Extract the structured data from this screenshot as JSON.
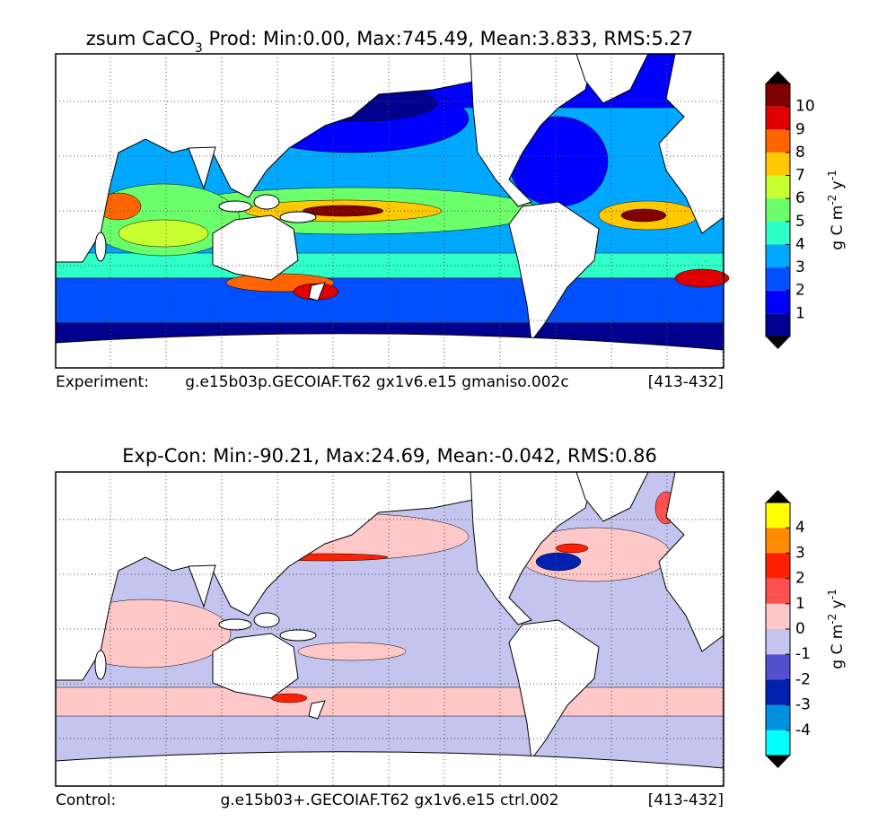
{
  "panels": [
    {
      "title": "zsum CaCO",
      "title_subscript": "3",
      "title_rest": " Prod: Min:0.00, Max:745.49, Mean:3.833, RMS:5.27",
      "caption_left": "Experiment:",
      "caption_mid": "g.e15b03p.GECOIAF.T62 gx1v6.e15 gmaniso.002c",
      "caption_right": "[413-432]",
      "colorbar": {
        "lim": [
          0,
          11
        ],
        "ticks": [
          1,
          2,
          3,
          4,
          5,
          6,
          7,
          8,
          9,
          10
        ],
        "colors": [
          "#00008f",
          "#0000ff",
          "#0050ff",
          "#00a8ff",
          "#2effc8",
          "#6cff6c",
          "#c8ff30",
          "#ffc800",
          "#ff6400",
          "#e00000",
          "#800000"
        ],
        "unit_base": "g C m",
        "unit_exp1": "-2",
        "unit_mid": " y",
        "unit_exp2": "-1"
      }
    },
    {
      "title": "Exp-Con: Min:-90.21, Max:24.69, Mean:-0.042, RMS:0.86",
      "caption_left": "Control:",
      "caption_mid": "g.e15b03+.GECOIAF.T62 gx1v6.e15 ctrl.002",
      "caption_right": "[413-432]",
      "colorbar": {
        "lim": [
          -5,
          5
        ],
        "ticks": [
          -4,
          -3,
          -2,
          -1,
          0,
          1,
          2,
          3,
          4
        ],
        "colors": [
          "#00ffff",
          "#0090e0",
          "#0020b0",
          "#5050d0",
          "#c4c4ee",
          "#ffc8c8",
          "#ff5050",
          "#ff2000",
          "#ff8c00",
          "#ffff00"
        ],
        "unit_base": "g C m",
        "unit_exp1": "-2",
        "unit_mid": " y",
        "unit_exp2": "-1"
      }
    }
  ]
}
